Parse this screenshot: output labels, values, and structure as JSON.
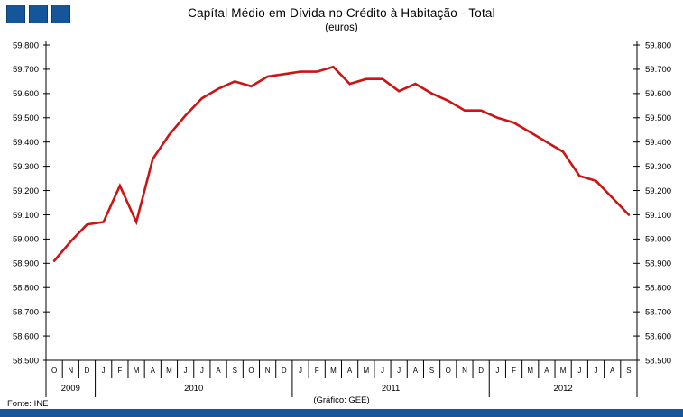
{
  "logo": {
    "square_count": 3,
    "square_color": "#15569a"
  },
  "footer": {
    "source": "Fonte: INE",
    "credit": "(Gráfico:  GEE)",
    "bar_color": "#15569a"
  },
  "chart_data": {
    "type": "line",
    "title": "Capítal Médio em Dívida no Crédito à Habitação - Total",
    "subtitle": "(euros)",
    "line_color": "#cc1414",
    "grid": false,
    "legend": false,
    "axis_color": "#000000",
    "y_axis": {
      "min": 58500,
      "max": 59800,
      "step": 100,
      "tick_labels_top_to_bottom": [
        "59.800",
        "59.700",
        "59.600",
        "59.500",
        "59.400",
        "59.300",
        "59.200",
        "59.100",
        "59.000",
        "58.900",
        "58.800",
        "58.700",
        "58.600",
        "58.500"
      ]
    },
    "x_groups": [
      {
        "year": "2009",
        "months": [
          "O",
          "N",
          "D"
        ],
        "values": [
          58910,
          58990,
          59060
        ]
      },
      {
        "year": "2010",
        "months": [
          "J",
          "F",
          "M",
          "A",
          "M",
          "J",
          "J",
          "A",
          "S",
          "O",
          "N",
          "D"
        ],
        "values": [
          59070,
          59220,
          59070,
          59330,
          59430,
          59510,
          59580,
          59620,
          59650,
          59630,
          59670,
          59680
        ]
      },
      {
        "year": "2011",
        "months": [
          "J",
          "F",
          "M",
          "A",
          "M",
          "J",
          "J",
          "A",
          "S",
          "O",
          "N",
          "D"
        ],
        "values": [
          59690,
          59690,
          59710,
          59640,
          59660,
          59660,
          59610,
          59640,
          59600,
          59570,
          59530,
          59530
        ]
      },
      {
        "year": "2012",
        "months": [
          "J",
          "F",
          "M",
          "A",
          "M",
          "J",
          "J",
          "A",
          "S"
        ],
        "values": [
          59500,
          59480,
          59440,
          59400,
          59360,
          59260,
          59240,
          59170,
          59100
        ]
      }
    ]
  }
}
